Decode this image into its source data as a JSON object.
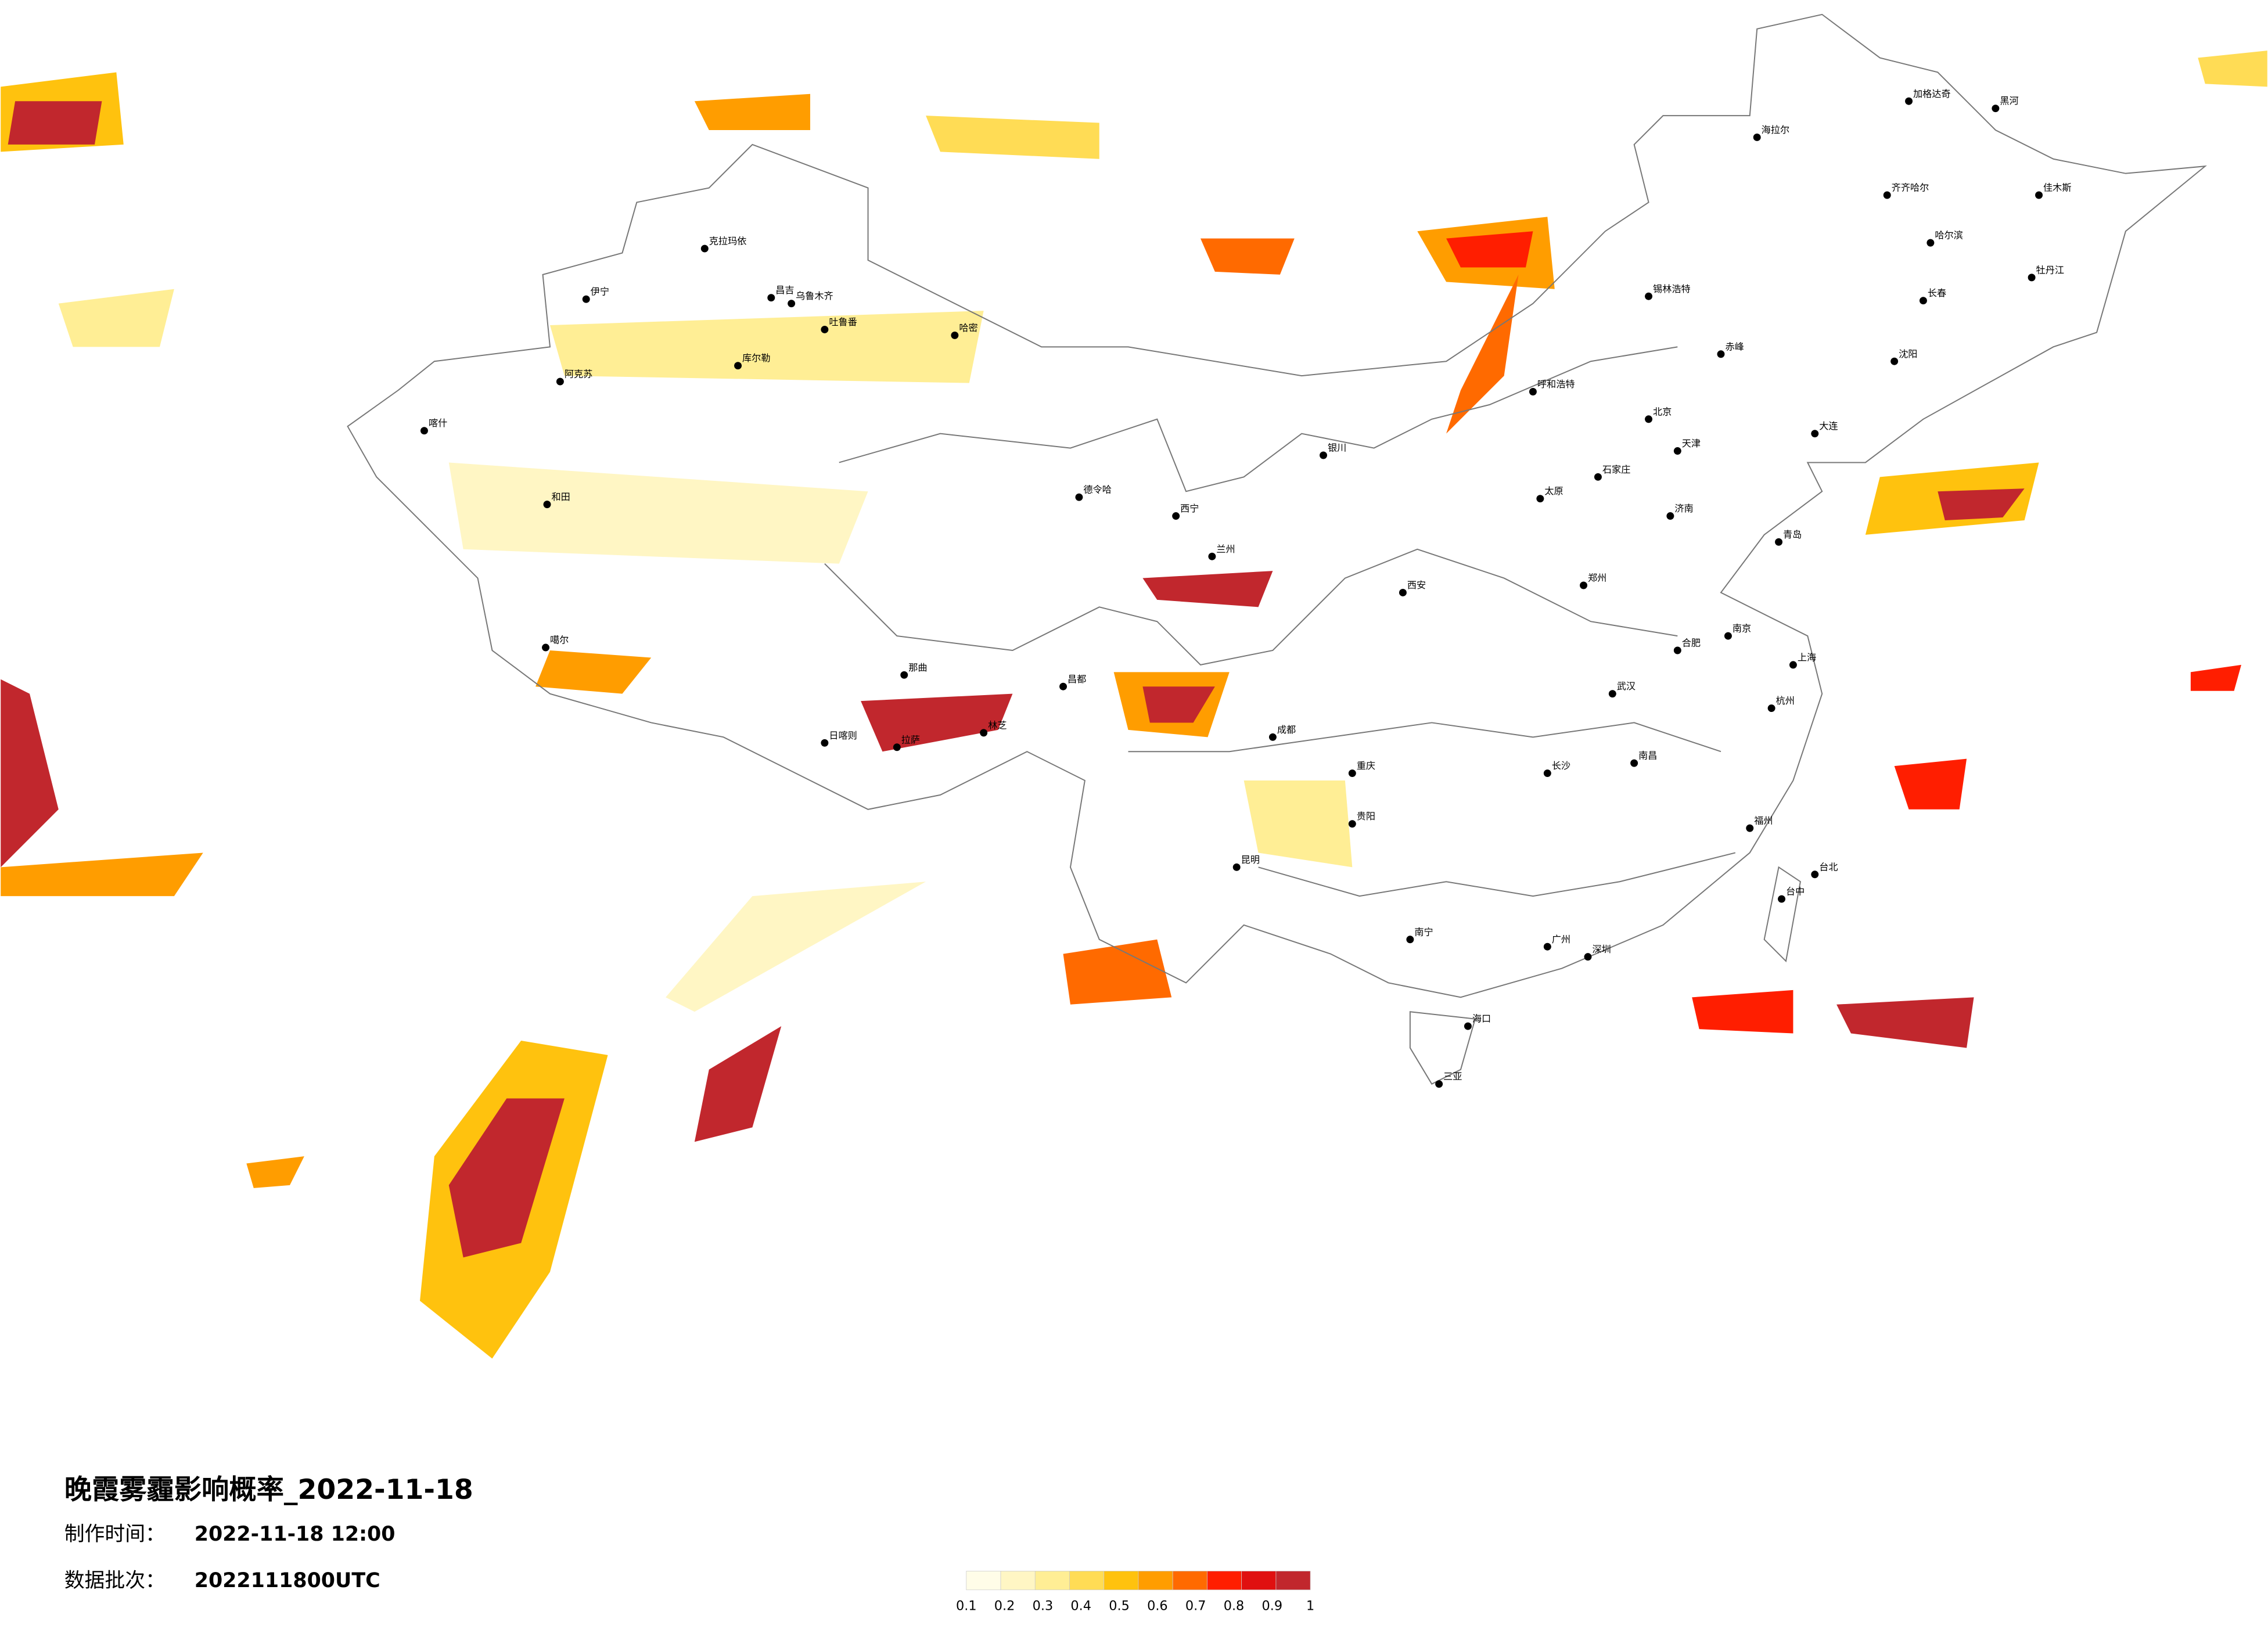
{
  "title": "晚霞雾霾影响概率_2022-11-18",
  "production_time_label": "制作时间：",
  "production_time": "2022-11-18 12:00",
  "batch_label": "数据批次：",
  "batch": "2022111800UTC",
  "legend": {
    "ticks": [
      0.1,
      0.2,
      0.3,
      0.4,
      0.5,
      0.6,
      0.7,
      0.8,
      0.9,
      1
    ],
    "colors": [
      "#fffde8",
      "#fff6c4",
      "#ffee95",
      "#ffdc55",
      "#ffc20e",
      "#ff9d00",
      "#ff6a00",
      "#ff1e00",
      "#e01010",
      "#c1272d"
    ]
  },
  "cities": [
    "克拉玛依",
    "伊宁",
    "阿克苏",
    "喀什",
    "和田",
    "哈密",
    "吐鲁番",
    "昌吉",
    "乌鲁木齐",
    "库尔勒",
    "德令哈",
    "拉萨",
    "日喀则",
    "林芝",
    "噶尔",
    "那曲",
    "昌都",
    "西宁",
    "兰州",
    "银川",
    "呼和浩特",
    "北京",
    "天津",
    "石家庄",
    "太原",
    "济南",
    "郑州",
    "西安",
    "成都",
    "重庆",
    "武汉",
    "长沙",
    "南昌",
    "合肥",
    "南京",
    "上海",
    "杭州",
    "福州",
    "台北",
    "台中",
    "广州",
    "深圳",
    "南宁",
    "海口",
    "三亚",
    "昆明",
    "贵阳",
    "哈尔滨",
    "长春",
    "沈阳",
    "大连",
    "齐齐哈尔",
    "海拉尔",
    "加格达奇",
    "黑河",
    "锡林浩特",
    "赤峰",
    "青岛",
    "佳木斯",
    "牡丹江"
  ]
}
